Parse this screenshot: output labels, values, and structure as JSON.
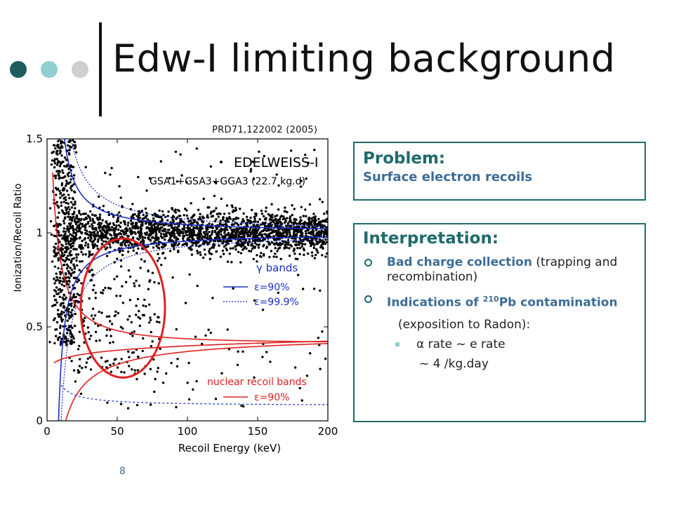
{
  "slide": {
    "title": "Edw-I limiting background",
    "citation": "PRD71,122002 (2005)",
    "page_number": "8",
    "dot_colors": [
      "#1f5c5c",
      "#8fcfd0",
      "#cfcfcf"
    ]
  },
  "problem": {
    "heading": "Problem:",
    "text": "Surface electron recoils"
  },
  "interpretation": {
    "heading": "Interpretation:",
    "bullets": [
      {
        "highlight": "Bad charge collection",
        "plain": "(trapping and recombination)"
      },
      {
        "highlight": "Indications of ",
        "sup": "210",
        "highlight2": "Pb contamination"
      }
    ],
    "continuation": "(exposition to Radon):",
    "sub_bullet": "α rate ~ e rate",
    "sub_continuation": "~ 4 /kg.day"
  },
  "chart_data": {
    "type": "scatter",
    "xlabel": "Recoil Energy (keV)",
    "ylabel": "Ionization/Recoil Ratio",
    "xlim": [
      0,
      200
    ],
    "ylim": [
      0,
      1.5
    ],
    "xticks": [
      "0",
      "50",
      "100",
      "150",
      "200"
    ],
    "yticks": [
      "0",
      "0.5",
      "1",
      "1.5"
    ],
    "annotations": {
      "experiment": "EDELWEISS-I",
      "dataset": "GSA1+GSA3+GGA3 (22.7 kg.d)",
      "gamma_title": "γ bands",
      "gamma_solid": "ε=90%",
      "gamma_dotted": "ε=99.9%",
      "nuclear_title": "nuclear recoil bands",
      "nuclear_solid": "ε=90%"
    },
    "colors": {
      "gamma": "#1a2fc8",
      "nuclear": "#e02020",
      "points": "#000000"
    },
    "highlight_circle": {
      "center": [
        54,
        0.6
      ],
      "radius_keV": 30,
      "radius_ratio": 0.37
    },
    "clusters": [
      {
        "label": "electron band",
        "x_range": [
          12,
          200
        ],
        "y_center": 1.0,
        "y_spread": 0.05,
        "approx_points": 2000
      },
      {
        "label": "low-energy column",
        "x_range": [
          5,
          20
        ],
        "y_range": [
          0.4,
          1.5
        ],
        "approx_points": 500
      },
      {
        "label": "surface events",
        "x_range": [
          15,
          80
        ],
        "y_range": [
          0.25,
          0.95
        ],
        "approx_points": 180
      },
      {
        "label": "sparse events",
        "x_range": [
          20,
          200
        ],
        "y_range": [
          0.05,
          1.45
        ],
        "approx_points": 160
      }
    ]
  }
}
